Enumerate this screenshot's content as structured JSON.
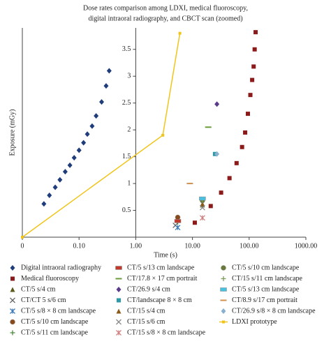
{
  "chart_data": {
    "type": "scatter",
    "title": [
      "Dose rates comparison among LDXI, medical fluoroscopy,",
      "digital intraoral radiography, and CBCT scan (zoomed)"
    ],
    "xlabel": "Time (s)",
    "ylabel": "Exposure (mGy)",
    "xscale": "log",
    "xlim": [
      0.01,
      1000
    ],
    "ylim": [
      0,
      3.9
    ],
    "y_axis_at_x": 1,
    "xticks": [
      {
        "value": 0.01,
        "label": "0"
      },
      {
        "value": 0.1,
        "label": "0.10"
      },
      {
        "value": 1,
        "label": "1.00"
      },
      {
        "value": 10,
        "label": "10.00"
      },
      {
        "value": 100,
        "label": "100.00"
      },
      {
        "value": 1000,
        "label": "1000.00"
      }
    ],
    "yticks": [
      0.5,
      1,
      1.5,
      2,
      2.5,
      3,
      3.5
    ],
    "legend": "bottom",
    "grid": false,
    "series": [
      {
        "name": "Digital intraoral radiography",
        "color": "#1f3d7a",
        "marker": "diamond",
        "x": [
          0.024,
          0.03,
          0.038,
          0.046,
          0.057,
          0.069,
          0.082,
          0.1,
          0.12,
          0.14,
          0.17,
          0.2,
          0.25,
          0.3,
          0.34
        ],
        "values": [
          0.62,
          0.78,
          0.93,
          1.07,
          1.22,
          1.34,
          1.48,
          1.62,
          1.76,
          1.92,
          2.07,
          2.26,
          2.52,
          2.82,
          3.1
        ]
      },
      {
        "name": "Medical fluoroscopy",
        "color": "#8b1a1a",
        "marker": "square",
        "x": [
          11,
          21,
          32,
          45,
          60,
          75,
          85,
          95,
          105,
          113,
          120,
          125,
          130
        ],
        "values": [
          0.27,
          0.58,
          0.83,
          1.1,
          1.38,
          1.68,
          1.95,
          2.3,
          2.65,
          2.93,
          3.18,
          3.5,
          3.82
        ]
      },
      {
        "name": "CT/5 s/4 cm",
        "color": "#5a5a1a",
        "marker": "triangle",
        "x": [
          15
        ],
        "values": [
          0.6
        ]
      },
      {
        "name": "CT/CT 5 s/6 cm",
        "color": "#666666",
        "marker": "x",
        "x": [
          5
        ],
        "values": [
          0.22
        ]
      },
      {
        "name": "CT/5 s/8 × 8 cm landscape",
        "color": "#3a7ab8",
        "marker": "asterisk",
        "x": [
          5.5
        ],
        "values": [
          0.18
        ]
      },
      {
        "name": "CT/5 s/10 cm landscape",
        "color": "#8b4a1a",
        "marker": "circle",
        "x": [
          5.5
        ],
        "values": [
          0.37
        ]
      },
      {
        "name": "CT/5 s/11 cm landscape",
        "color": "#4a8a3a",
        "marker": "plus",
        "x": [
          5.5
        ],
        "values": [
          0.28
        ]
      },
      {
        "name": "CT/5 s/13 cm landscape",
        "color": "#c0392b",
        "marker": "rect",
        "x": [
          5.5
        ],
        "values": [
          0.3
        ]
      },
      {
        "name": "CT/17.8 × 17 cm portrait",
        "color": "#6a9a3a",
        "marker": "dash",
        "x": [
          19
        ],
        "values": [
          2.05
        ]
      },
      {
        "name": "CT/26.9 s/4 cm",
        "color": "#5a3a8a",
        "marker": "diamond",
        "x": [
          27
        ],
        "values": [
          2.48
        ]
      },
      {
        "name": "CT/landscape 8 × 8 cm",
        "color": "#2a9aa8",
        "marker": "square",
        "x": [
          25
        ],
        "values": [
          1.55
        ]
      },
      {
        "name": "CT/15 s/4 cm",
        "color": "#8b5a1a",
        "marker": "triangle",
        "x": [
          15
        ],
        "values": [
          0.62
        ]
      },
      {
        "name": "CT/15 s/6 cm",
        "color": "#888888",
        "marker": "x",
        "x": [
          15
        ],
        "values": [
          0.55
        ]
      },
      {
        "name": "CT/15 s/8 × 8 cm landscape",
        "color": "#d08080",
        "marker": "asterisk",
        "x": [
          15
        ],
        "values": [
          0.36
        ]
      },
      {
        "name": "CT/5 s/10 cm landscape",
        "color": "#6a7a3a",
        "marker": "circle",
        "x": [
          15
        ],
        "values": [
          0.68
        ]
      },
      {
        "name": "CT/15 s/11 cm landscape",
        "color": "#7a9a5a",
        "marker": "plus",
        "x": [
          15
        ],
        "values": [
          0.7
        ]
      },
      {
        "name": "CT/5 s/13 cm landscape",
        "color": "#4ac0e0",
        "marker": "rect",
        "x": [
          15
        ],
        "values": [
          0.72
        ]
      },
      {
        "name": "CT/8.9 s/17 cm portrait",
        "color": "#d09050",
        "marker": "dash",
        "x": [
          9
        ],
        "values": [
          1.0
        ]
      },
      {
        "name": "CT/26.9 s/8 × 8 cm landscape",
        "color": "#8ab0d0",
        "marker": "diamond",
        "x": [
          27
        ],
        "values": [
          1.55
        ]
      },
      {
        "name": "LDXI prototype",
        "color": "#f0c419",
        "marker": "line",
        "x": [
          0.01,
          3,
          6
        ],
        "values": [
          0,
          1.9,
          3.8
        ]
      }
    ]
  }
}
